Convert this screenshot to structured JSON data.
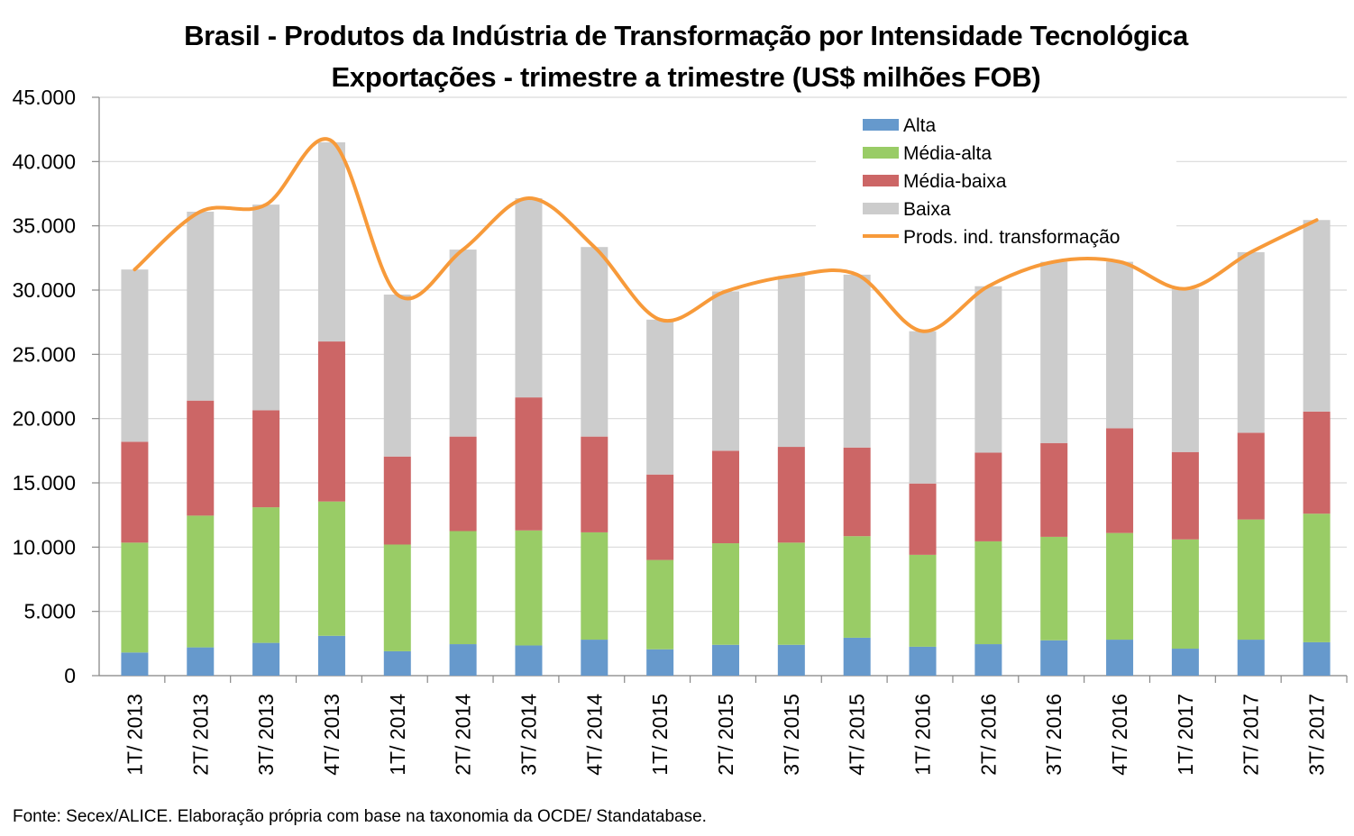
{
  "chart_data": {
    "type": "bar",
    "stacked": true,
    "title": "Brasil - Produtos da Indústria de Transformação por Intensidade Tecnológica",
    "subtitle": "Exportações - trimestre a trimestre (US$ milhões FOB)",
    "source": "Fonte: Secex/ALICE. Elaboração própria com base na taxonomia da OCDE/ Standatabase.",
    "xlabel": "",
    "ylabel": "",
    "ylim": [
      0,
      45000
    ],
    "yticks": [
      0,
      5000,
      10000,
      15000,
      20000,
      25000,
      30000,
      35000,
      40000,
      45000
    ],
    "ytick_labels": [
      "0",
      "5.000",
      "10.000",
      "15.000",
      "20.000",
      "25.000",
      "30.000",
      "35.000",
      "40.000",
      "45.000"
    ],
    "grid": true,
    "legend_position": "top-right",
    "categories": [
      "1T/ 2013",
      "2T/ 2013",
      "3T/ 2013",
      "4T/ 2013",
      "1T/ 2014",
      "2T/ 2014",
      "3T/ 2014",
      "4T/ 2014",
      "1T/ 2015",
      "2T/ 2015",
      "3T/ 2015",
      "4T/ 2015",
      "1T/ 2016",
      "2T/ 2016",
      "3T/ 2016",
      "4T/ 2016",
      "1T/ 2017",
      "2T/ 2017",
      "3T/ 2017"
    ],
    "series": [
      {
        "name": "Alta",
        "color": "#6699CC",
        "values": [
          1800,
          2200,
          2550,
          3100,
          1900,
          2450,
          2350,
          2800,
          2050,
          2400,
          2400,
          2950,
          2250,
          2450,
          2750,
          2800,
          2100,
          2800,
          2600
        ]
      },
      {
        "name": "Média-alta",
        "color": "#99CC66",
        "values": [
          8550,
          10250,
          10550,
          10450,
          8300,
          8800,
          8950,
          8350,
          6950,
          7900,
          7950,
          7900,
          7150,
          8000,
          8050,
          8300,
          8500,
          9350,
          10000
        ]
      },
      {
        "name": "Média-baixa",
        "color": "#CC6666",
        "values": [
          7850,
          8950,
          7550,
          12450,
          6850,
          7350,
          10350,
          7450,
          6650,
          7200,
          7450,
          6900,
          5550,
          6900,
          7300,
          8150,
          6800,
          6750,
          7950
        ]
      },
      {
        "name": "Baixa",
        "color": "#CCCCCC",
        "values": [
          13400,
          14700,
          16000,
          15500,
          12600,
          14550,
          15500,
          14750,
          12050,
          12400,
          13300,
          13450,
          11850,
          12950,
          14100,
          12950,
          12700,
          14050,
          14900
        ]
      }
    ],
    "line_series": {
      "name": "Prods. ind. transformação",
      "color": "#F79A3A",
      "values": [
        31600,
        36100,
        36650,
        41600,
        29650,
        33150,
        37150,
        33350,
        27700,
        29900,
        31100,
        31200,
        26800,
        30300,
        32200,
        32200,
        30100,
        32950,
        35450
      ]
    }
  }
}
